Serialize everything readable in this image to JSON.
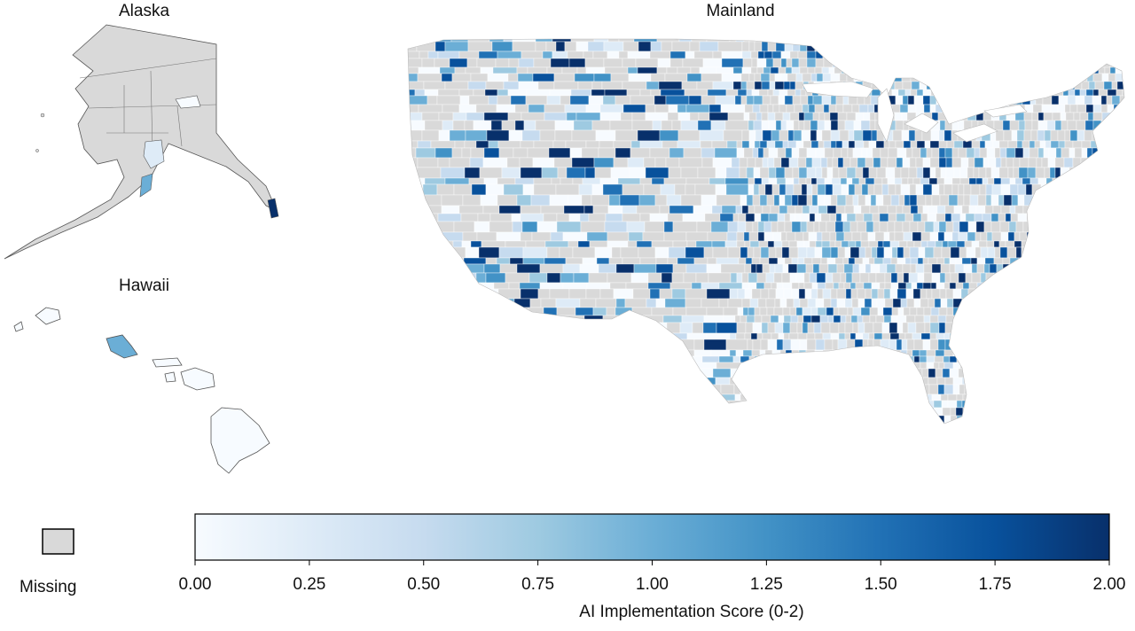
{
  "panels": {
    "alaska": "Alaska",
    "hawaii": "Hawaii",
    "mainland": "Mainland"
  },
  "legend": {
    "missing_label": "Missing",
    "missing_color": "#d9d9d9",
    "colorbar_title": "AI Implementation Score (0-2)",
    "range": [
      0,
      2
    ],
    "ticks": [
      "0.00",
      "0.25",
      "0.50",
      "0.75",
      "1.00",
      "1.25",
      "1.50",
      "1.75",
      "2.00"
    ],
    "colormap": [
      "#f7fbff",
      "#deebf7",
      "#c6dbef",
      "#9ecae1",
      "#6baed6",
      "#4292c6",
      "#2171b5",
      "#08519c",
      "#08306b"
    ]
  }
}
